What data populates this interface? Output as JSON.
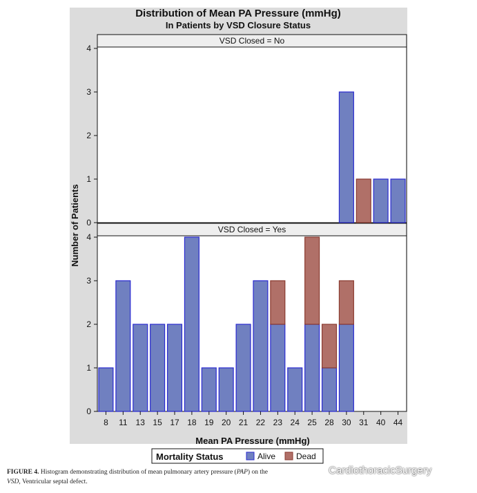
{
  "chart_data": {
    "type": "bar",
    "stacked": true,
    "title": "Distribution of Mean PA Pressure (mmHg)",
    "subtitle": "In Patients by VSD Closure Status",
    "xlabel": "Mean PA Pressure (mmHg)",
    "ylabel": "Number of Patients",
    "categories": [
      "8",
      "11",
      "13",
      "15",
      "17",
      "18",
      "19",
      "20",
      "21",
      "22",
      "23",
      "24",
      "25",
      "28",
      "30",
      "31",
      "40",
      "44"
    ],
    "ylim": [
      0,
      4
    ],
    "yticks": [
      "0",
      "1",
      "2",
      "3",
      "4"
    ],
    "grid": false,
    "legend_position": "bottom",
    "panels": [
      {
        "label": "VSD Closed = No",
        "series": [
          {
            "name": "Alive",
            "values": [
              0,
              0,
              0,
              0,
              0,
              0,
              0,
              0,
              0,
              0,
              0,
              0,
              0,
              0,
              3,
              0,
              1,
              1
            ]
          },
          {
            "name": "Dead",
            "values": [
              0,
              0,
              0,
              0,
              0,
              0,
              0,
              0,
              0,
              0,
              0,
              0,
              0,
              0,
              0,
              1,
              0,
              0
            ]
          }
        ]
      },
      {
        "label": "VSD Closed = Yes",
        "series": [
          {
            "name": "Alive",
            "values": [
              1,
              3,
              2,
              2,
              2,
              4,
              1,
              1,
              2,
              3,
              2,
              1,
              2,
              1,
              2,
              0,
              0,
              0
            ]
          },
          {
            "name": "Dead",
            "values": [
              0,
              0,
              0,
              0,
              0,
              0,
              0,
              0,
              0,
              0,
              1,
              0,
              2,
              1,
              1,
              0,
              0,
              0
            ]
          }
        ]
      }
    ],
    "legend": {
      "title": "Mortality Status",
      "items": [
        "Alive",
        "Dead"
      ]
    },
    "colors": {
      "Alive": "#7080c0",
      "Dead": "#b07068",
      "Alive_edge": "#2a2ad0",
      "Dead_edge": "#8a3a30"
    }
  },
  "caption": {
    "label": "FIGURE 4.",
    "text1": "Histogram demonstrating distribution of mean pulmonary artery pressure (",
    "abbr": "PAP",
    "text2": ") on the",
    "line2_abbr": "VSD",
    "line2_text": ", Ventricular septal defect."
  },
  "watermark": {
    "text": "CardiothoracicSurgery",
    "icon": "wechat-icon"
  }
}
